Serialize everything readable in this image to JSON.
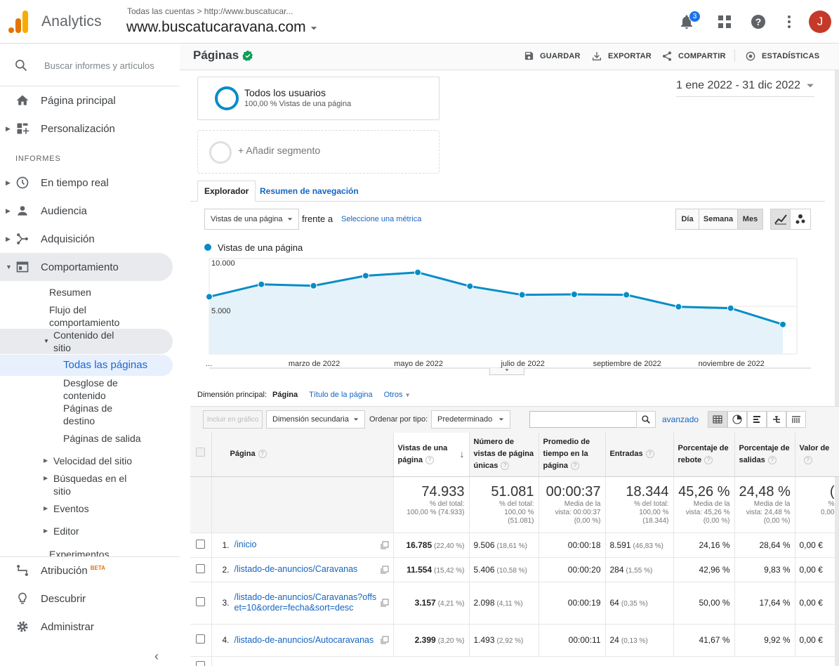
{
  "header": {
    "app_name": "Analytics",
    "breadcrumb": "Todas las cuentas",
    "breadcrumb_sep": ">",
    "breadcrumb_url": "http://www.buscatucar...",
    "property": "www.buscatucaravana.com",
    "notifications_count": "3",
    "avatar_letter": "J"
  },
  "sidebar": {
    "search_placeholder": "Buscar informes y artículos",
    "home": "Página principal",
    "custom": "Personalización",
    "section": "INFORMES",
    "realtime": "En tiempo real",
    "audience": "Audiencia",
    "acquisition": "Adquisición",
    "behavior": "Comportamiento",
    "overview": "Resumen",
    "flow": "Flujo del comportamiento",
    "content": "Contenido del sitio",
    "all_pages": "Todas las páginas",
    "drilldown": "Desglose de contenido",
    "landing": "Páginas de destino",
    "exit": "Páginas de salida",
    "speed": "Velocidad del sitio",
    "search": "Búsquedas en el sitio",
    "events": "Eventos",
    "publisher": "Editor",
    "experiments": "Experimentos",
    "attribution": "Atribución",
    "beta": "BETA",
    "discover": "Descubrir",
    "admin": "Administrar"
  },
  "report": {
    "title": "Páginas",
    "save": "GUARDAR",
    "export": "EXPORTAR",
    "share": "COMPARTIR",
    "insights": "ESTADÍSTICAS",
    "segment_name": "Todos los usuarios",
    "segment_sub": "100,00 % Vistas de una página",
    "add_segment": "+ Añadir segmento",
    "date_range": "1 ene 2022 - 31 dic 2022",
    "tab_explorer": "Explorador",
    "tab_nav": "Resumen de navegación",
    "metric": "Vistas de una página",
    "vs": "frente a",
    "select_metric": "Seleccione una métrica",
    "day": "Día",
    "week": "Semana",
    "month": "Mes"
  },
  "chart_data": {
    "type": "line",
    "legend": "Vistas de una página",
    "x_tick_labels": [
      "...",
      "marzo de 2022",
      "mayo de 2022",
      "julio de 2022",
      "septiembre de 2022",
      "noviembre de 2022"
    ],
    "y_tick_labels": [
      "10.000",
      "5.000"
    ],
    "ylim": [
      0,
      10000
    ],
    "x": [
      "ene 2022",
      "feb 2022",
      "mar 2022",
      "abr 2022",
      "may 2022",
      "jun 2022",
      "jul 2022",
      "ago 2022",
      "sep 2022",
      "oct 2022",
      "nov 2022",
      "dic 2022"
    ],
    "values": [
      6000,
      7300,
      7150,
      8200,
      8550,
      7100,
      6200,
      6250,
      6200,
      4950,
      4800,
      3100
    ],
    "color": "#058dc7",
    "fill": "#e5f2f9",
    "grid": true
  },
  "controls": {
    "primary_dim_label": "Dimensión principal:",
    "dim_page": "Página",
    "dim_title": "Título de la página",
    "dim_other": "Otros",
    "include_chart": "Incluir en gráfico",
    "secondary_dim": "Dimensión secundaria",
    "sort_label": "Ordenar por tipo:",
    "sort_value": "Predeterminado",
    "advanced": "avanzado"
  },
  "table": {
    "columns": [
      "Página",
      "Vistas de una página",
      "Número de vistas de página únicas",
      "Promedio de tiempo en la página",
      "Entradas",
      "Porcentaje de rebote",
      "Porcentaje de salidas",
      "Valor de"
    ],
    "totals": [
      {
        "big": "74.933",
        "sub1": "% del total:",
        "sub2": "100,00 % (74.933)",
        "sub3": ""
      },
      {
        "big": "51.081",
        "sub1": "% del total:",
        "sub2": "100,00 %",
        "sub3": "(51.081)"
      },
      {
        "big": "00:00:37",
        "sub1": "Media de la",
        "sub2": "vista: 00:00:37",
        "sub3": "(0,00 %)"
      },
      {
        "big": "18.344",
        "sub1": "% del total:",
        "sub2": "100,00 %",
        "sub3": "(18.344)"
      },
      {
        "big": "45,26 %",
        "sub1": "Media de la",
        "sub2": "vista: 45,26 %",
        "sub3": "(0,00 %)"
      },
      {
        "big": "24,48 %",
        "sub1": "Media de la",
        "sub2": "vista: 24,48 %",
        "sub3": "(0,00 %)"
      },
      {
        "big": "(",
        "sub1": "%",
        "sub2": "0,00",
        "sub3": ""
      }
    ],
    "rows": [
      {
        "n": "1.",
        "page": "/inicio",
        "views": "16.785",
        "views_pct": "(22,40 %)",
        "unique": "9.506",
        "unique_pct": "(18,61 %)",
        "time": "00:00:18",
        "entries": "8.591",
        "entries_pct": "(46,83 %)",
        "bounce": "24,16 %",
        "exit": "28,64 %",
        "value": "0,00 €"
      },
      {
        "n": "2.",
        "page": "/listado-de-anuncios/Caravanas",
        "views": "11.554",
        "views_pct": "(15,42 %)",
        "unique": "5.406",
        "unique_pct": "(10,58 %)",
        "time": "00:00:20",
        "entries": "284",
        "entries_pct": "(1,55 %)",
        "bounce": "42,96 %",
        "exit": "9,83 %",
        "value": "0,00 €"
      },
      {
        "n": "3.",
        "page": "/listado-de-anuncios/Caravanas?offset=10&order=fecha&sort=desc",
        "views": "3.157",
        "views_pct": "(4,21 %)",
        "unique": "2.098",
        "unique_pct": "(4,11 %)",
        "time": "00:00:19",
        "entries": "64",
        "entries_pct": "(0,35 %)",
        "bounce": "50,00 %",
        "exit": "17,64 %",
        "value": "0,00 €"
      },
      {
        "n": "4.",
        "page": "/listado-de-anuncios/Autocaravanas",
        "views": "2.399",
        "views_pct": "(3,20 %)",
        "unique": "1.493",
        "unique_pct": "(2,92 %)",
        "time": "00:00:11",
        "entries": "24",
        "entries_pct": "(0,13 %)",
        "bounce": "41,67 %",
        "exit": "9,92 %",
        "value": "0,00 €"
      }
    ]
  }
}
